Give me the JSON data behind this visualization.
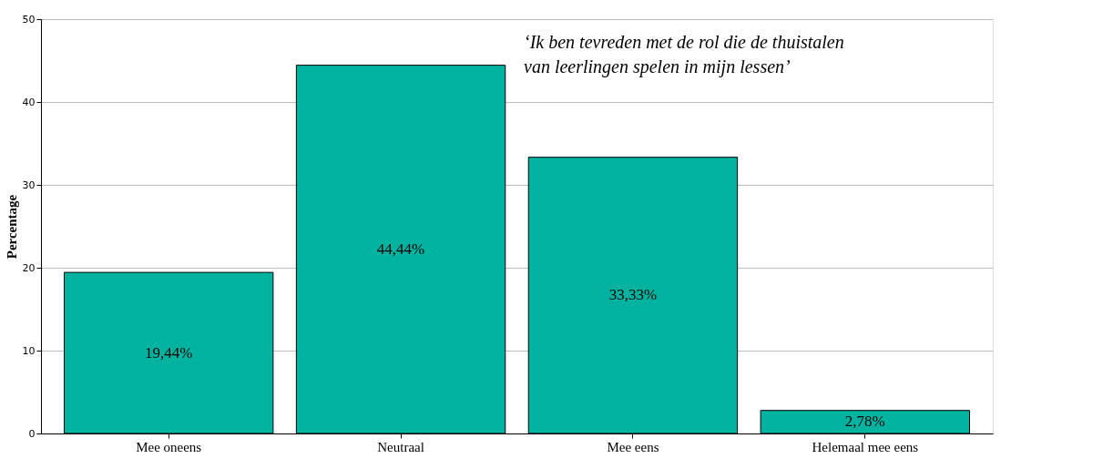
{
  "chart_data": {
    "type": "bar",
    "categories": [
      "Mee oneens",
      "Neutraal",
      "Mee eens",
      "Helemaal mee eens"
    ],
    "values": [
      19.44,
      44.44,
      33.33,
      2.78
    ],
    "value_labels": [
      "19,44%",
      "44,44%",
      "33,33%",
      "2,78%"
    ],
    "color": "#00b2a0",
    "ylabel": "Percentage",
    "ylim": [
      0,
      50
    ],
    "yticks": [
      0,
      10,
      20,
      30,
      40,
      50
    ],
    "grid": "y",
    "annotations": [
      "‘Ik ben tevreden met de rol die de thuistalen van leerlingen spelen in mijn lessen’"
    ]
  }
}
